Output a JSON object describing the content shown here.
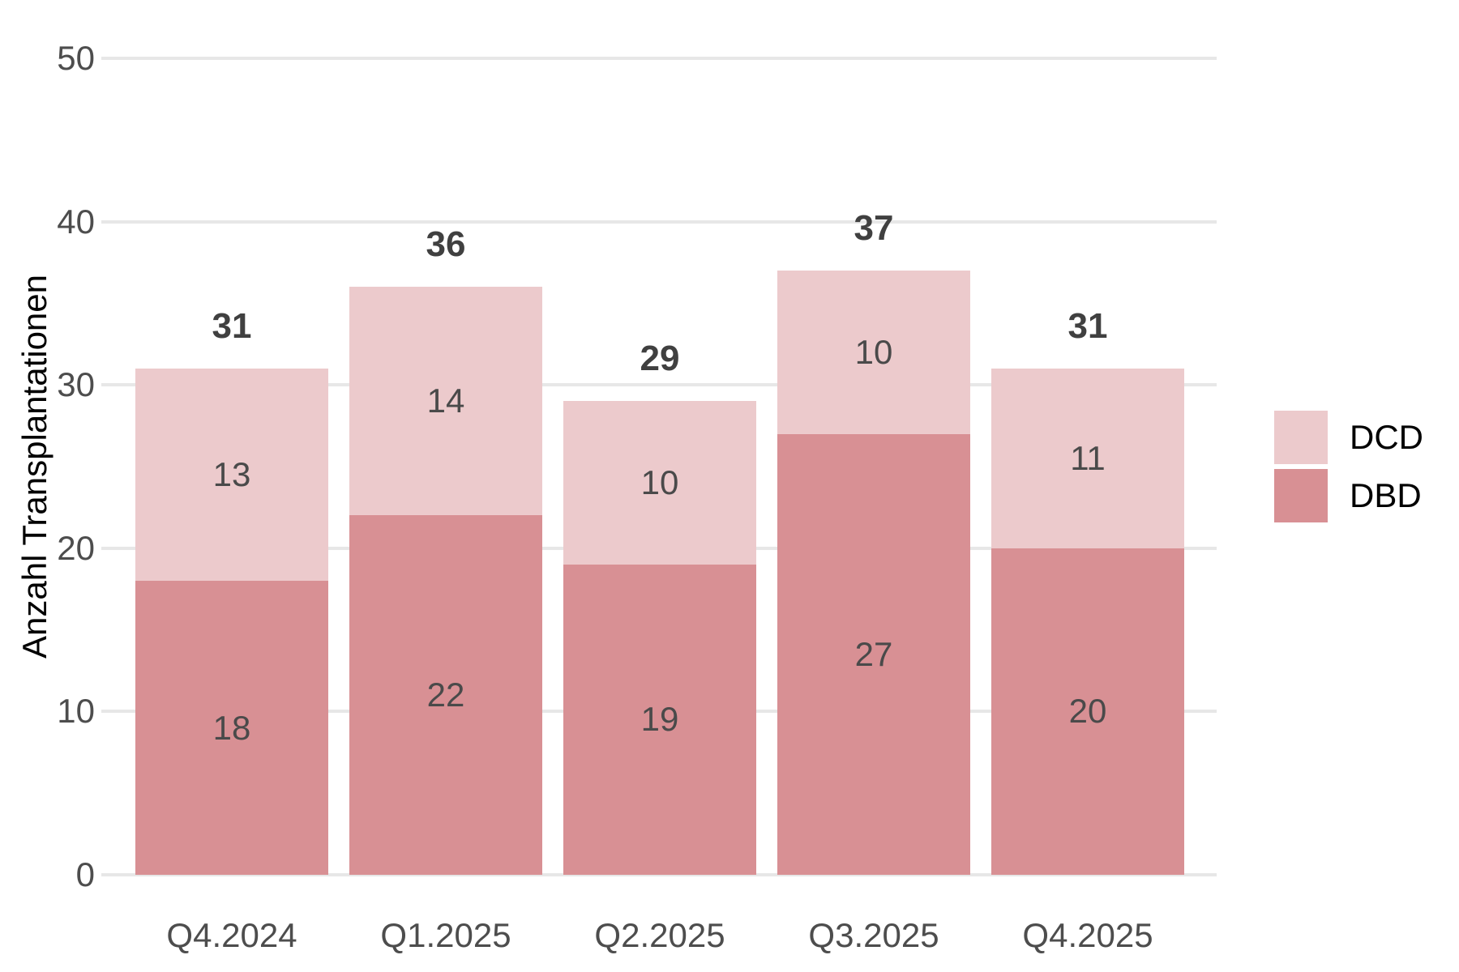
{
  "chart_data": {
    "type": "bar",
    "stacked": true,
    "categories": [
      "Q4.2024",
      "Q1.2025",
      "Q2.2025",
      "Q3.2025",
      "Q4.2025"
    ],
    "series": [
      {
        "name": "DBD",
        "color": "#d89094",
        "values": [
          18,
          22,
          19,
          27,
          20
        ]
      },
      {
        "name": "DCD",
        "color": "#eccacc",
        "values": [
          13,
          14,
          10,
          10,
          11
        ]
      }
    ],
    "totals": [
      31,
      36,
      29,
      37,
      31
    ],
    "ylabel": "Anzahl Transplantationen",
    "xlabel": "",
    "ylim": [
      0,
      50
    ],
    "y_ticks": [
      0,
      10,
      20,
      30,
      40,
      50
    ],
    "grid": "horizontal",
    "gridline_color": "#e7e7e7",
    "background_color": "#ffffff",
    "tick_text_color": "#4d4d4d",
    "value_label_color": "#4a4a4a",
    "total_label_color": "#404040",
    "legend": {
      "position": "right",
      "items": [
        {
          "label": "DCD",
          "color": "#eccacc"
        },
        {
          "label": "DBD",
          "color": "#d89094"
        }
      ]
    }
  }
}
